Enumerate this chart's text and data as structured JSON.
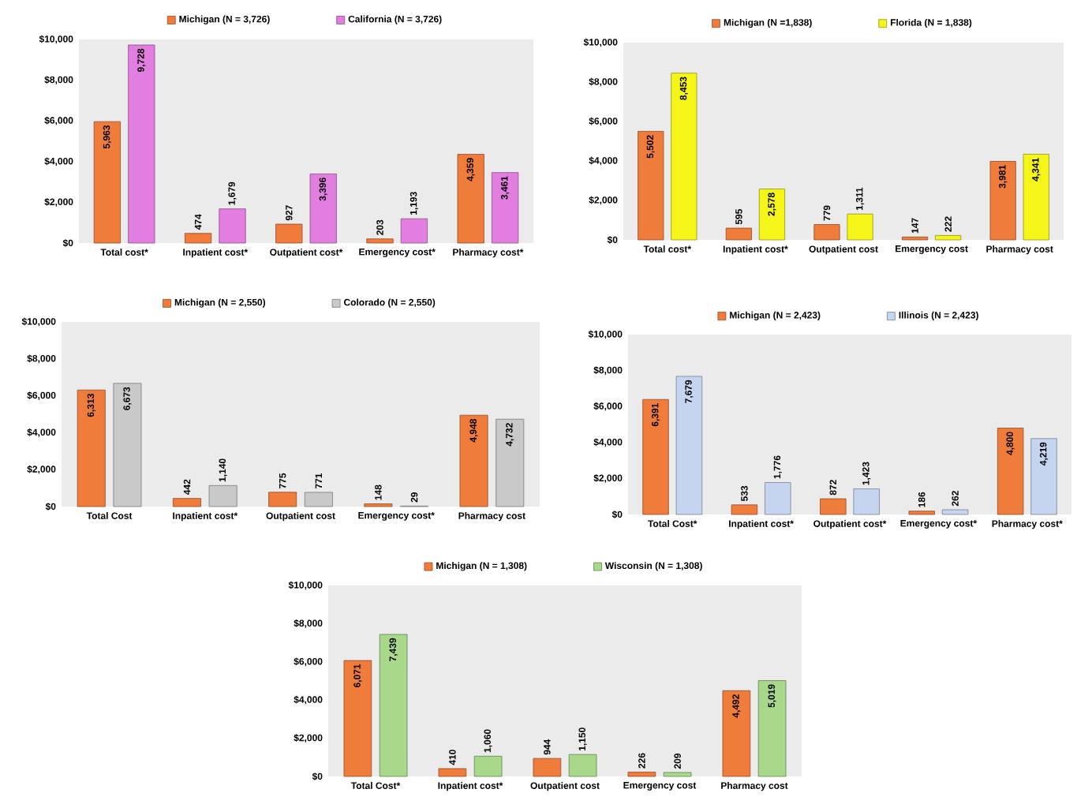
{
  "chart_data": [
    {
      "type": "bar",
      "categories": [
        "Total cost*",
        "Inpatient cost*",
        "Outpatient cost*",
        "Emergency cost*",
        "Pharmacy cost*"
      ],
      "series": [
        {
          "name": "Michigan (N = 3,726)",
          "color": "#f07c3c",
          "values": [
            5963,
            474,
            927,
            203,
            4359
          ],
          "value_labels": [
            "5,963",
            "474",
            "927",
            "203",
            "4,359"
          ]
        },
        {
          "name": "California (N = 3,726)",
          "color": "#e27ee0",
          "values": [
            9728,
            1679,
            3396,
            1193,
            3461
          ],
          "value_labels": [
            "9,728",
            "1,679",
            "3,396",
            "1,193",
            "3,461"
          ]
        }
      ],
      "ylim": [
        0,
        10000
      ],
      "yticks": [
        {
          "value": 0,
          "label": "$0"
        },
        {
          "value": 2000,
          "label": "$2,000"
        },
        {
          "value": 4000,
          "label": "$4,000"
        },
        {
          "value": 6000,
          "label": "$6,000"
        },
        {
          "value": 8000,
          "label": "$8,000"
        },
        {
          "value": 10000,
          "label": "$10,000"
        }
      ],
      "legend": "top"
    },
    {
      "type": "bar",
      "categories": [
        "Total cost*",
        "Inpatient cost*",
        "Outpatient cost",
        "Emergency cost",
        "Pharmacy cost"
      ],
      "series": [
        {
          "name": "Michigan (N =1,838)",
          "color": "#f07c3c",
          "values": [
            5502,
            595,
            779,
            147,
            3981
          ],
          "value_labels": [
            "5,502",
            "595",
            "779",
            "147",
            "3,981"
          ]
        },
        {
          "name": "Florida (N = 1,838)",
          "color": "#f5f51a",
          "values": [
            8453,
            2578,
            1311,
            222,
            4341
          ],
          "value_labels": [
            "8,453",
            "2,578",
            "1,311",
            "222",
            "4,341"
          ]
        }
      ],
      "ylim": [
        0,
        10000
      ],
      "yticks": [
        {
          "value": 0,
          "label": "$0"
        },
        {
          "value": 2000,
          "label": "$2,000"
        },
        {
          "value": 4000,
          "label": "$4,000"
        },
        {
          "value": 6000,
          "label": "$6,000"
        },
        {
          "value": 8000,
          "label": "$8,000"
        },
        {
          "value": 10000,
          "label": "$10,000"
        }
      ],
      "legend": "top"
    },
    {
      "type": "bar",
      "categories": [
        "Total Cost",
        "Inpatient cost*",
        "Outpatient cost",
        "Emergency cost*",
        "Pharmacy cost"
      ],
      "series": [
        {
          "name": "Michigan (N = 2,550)",
          "color": "#f07c3c",
          "values": [
            6313,
            442,
            775,
            148,
            4948
          ],
          "value_labels": [
            "6,313",
            "442",
            "775",
            "148",
            "4,948"
          ]
        },
        {
          "name": "Colorado (N = 2,550)",
          "color": "#c9c9c9",
          "values": [
            6673,
            1140,
            771,
            29,
            4732
          ],
          "value_labels": [
            "6,673",
            "1,140",
            "771",
            "29",
            "4,732"
          ]
        }
      ],
      "ylim": [
        0,
        10000
      ],
      "yticks": [
        {
          "value": 0,
          "label": "$0"
        },
        {
          "value": 2000,
          "label": "$2,000"
        },
        {
          "value": 4000,
          "label": "$4,000"
        },
        {
          "value": 6000,
          "label": "$6,000"
        },
        {
          "value": 8000,
          "label": "$8,000"
        },
        {
          "value": 10000,
          "label": "$10,000"
        }
      ],
      "legend": "top"
    },
    {
      "type": "bar",
      "categories": [
        "Total Cost*",
        "Inpatient cost*",
        "Outpatient cost*",
        "Emergency cost*",
        "Pharmacy cost*"
      ],
      "series": [
        {
          "name": "Michigan (N = 2,423)",
          "color": "#f07c3c",
          "values": [
            6391,
            533,
            872,
            186,
            4800
          ],
          "value_labels": [
            "6,391",
            "533",
            "872",
            "186",
            "4,800"
          ]
        },
        {
          "name": "Illinois (N = 2,423)",
          "color": "#c5d5f0",
          "values": [
            7679,
            1776,
            1423,
            262,
            4219
          ],
          "value_labels": [
            "7,679",
            "1,776",
            "1,423",
            "262",
            "4,219"
          ]
        }
      ],
      "ylim": [
        0,
        10000
      ],
      "yticks": [
        {
          "value": 0,
          "label": "$0"
        },
        {
          "value": 2000,
          "label": "$2,000"
        },
        {
          "value": 4000,
          "label": "$4,000"
        },
        {
          "value": 6000,
          "label": "$6,000"
        },
        {
          "value": 8000,
          "label": "$8,000"
        },
        {
          "value": 10000,
          "label": "$10,000"
        }
      ],
      "legend": "top"
    },
    {
      "type": "bar",
      "categories": [
        "Total Cost*",
        "Inpatient cost*",
        "Outpatient cost",
        "Emergency cost",
        "Pharmacy cost"
      ],
      "series": [
        {
          "name": "Michigan (N = 1,308)",
          "color": "#f07c3c",
          "values": [
            6071,
            410,
            944,
            226,
            4492
          ],
          "value_labels": [
            "6,071",
            "410",
            "944",
            "226",
            "4,492"
          ]
        },
        {
          "name": "Wisconsin (N = 1,308)",
          "color": "#a8d88a",
          "values": [
            7439,
            1060,
            1150,
            209,
            5019
          ],
          "value_labels": [
            "7,439",
            "1,060",
            "1,150",
            "209",
            "5,019"
          ]
        }
      ],
      "ylim": [
        0,
        10000
      ],
      "yticks": [
        {
          "value": 0,
          "label": "$0"
        },
        {
          "value": 2000,
          "label": "$2,000"
        },
        {
          "value": 4000,
          "label": "$4,000"
        },
        {
          "value": 6000,
          "label": "$6,000"
        },
        {
          "value": 8000,
          "label": "$8,000"
        },
        {
          "value": 10000,
          "label": "$10,000"
        }
      ],
      "legend": "top"
    }
  ]
}
